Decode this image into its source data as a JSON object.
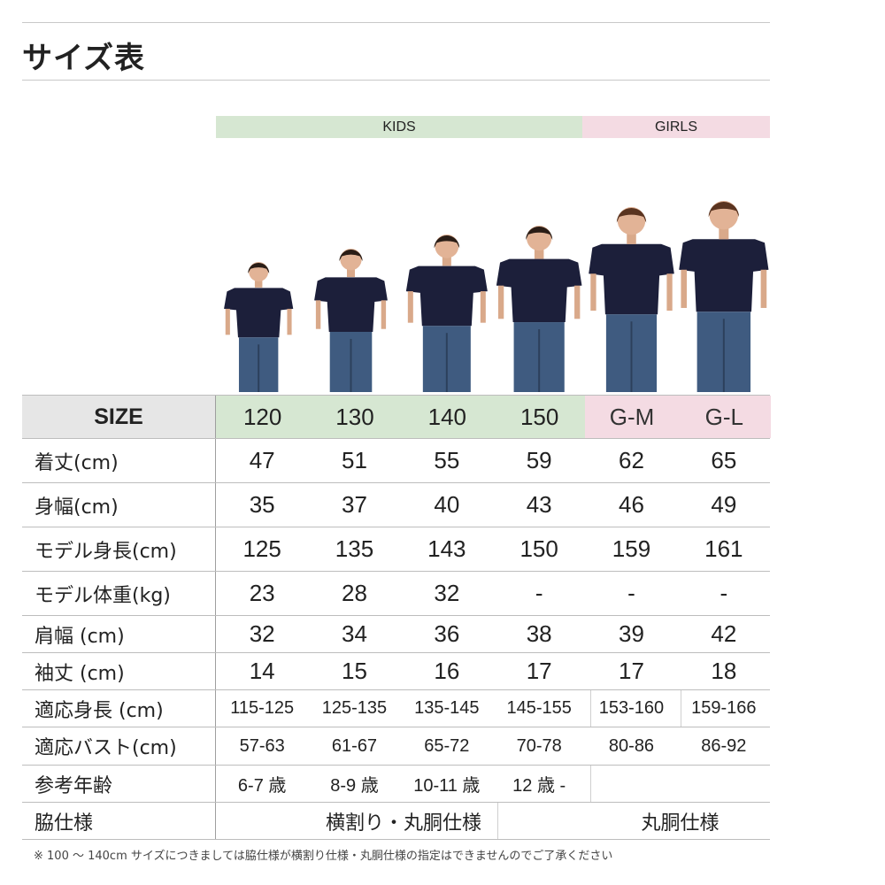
{
  "title": "サイズ表",
  "groups": {
    "kids": "KIDS",
    "girls": "GIRLS"
  },
  "colors": {
    "kids": "#d6e7d2",
    "girls": "#f4dbe3",
    "size_label_bg": "#e6e6e6",
    "shirt": "#1c1f3a",
    "jeans": "#3f5b80"
  },
  "header": {
    "label": "SIZE",
    "sizes": [
      "120",
      "130",
      "140",
      "150",
      "G-M",
      "G-L"
    ]
  },
  "rows": [
    {
      "label": "着丈(cm)",
      "values": [
        "47",
        "51",
        "55",
        "59",
        "62",
        "65"
      ]
    },
    {
      "label": "身幅(cm)",
      "values": [
        "35",
        "37",
        "40",
        "43",
        "46",
        "49"
      ]
    },
    {
      "label": "モデル身長(cm)",
      "values": [
        "125",
        "135",
        "143",
        "150",
        "159",
        "161"
      ]
    },
    {
      "label": "モデル体重(kg)",
      "values": [
        "23",
        "28",
        "32",
        "-",
        "-",
        "-"
      ]
    },
    {
      "label": "肩幅 (cm)",
      "values": [
        "32",
        "34",
        "36",
        "38",
        "39",
        "42"
      ]
    },
    {
      "label": "袖丈 (cm)",
      "values": [
        "14",
        "15",
        "16",
        "17",
        "17",
        "18"
      ]
    },
    {
      "label": "適応身長 (cm)",
      "values": [
        "115-125",
        "125-135",
        "135-145",
        "145-155",
        "153-160",
        "159-166"
      ]
    },
    {
      "label": "適応バスト(cm)",
      "values": [
        "57-63",
        "61-67",
        "65-72",
        "70-78",
        "80-86",
        "86-92"
      ]
    },
    {
      "label": "参考年齢",
      "values": [
        "6-7 歳",
        "8-9 歳",
        "10-11 歳",
        "12 歳 -",
        ""
      ]
    },
    {
      "label": "脇仕様",
      "values": [
        "横割り・丸胴仕様",
        "丸胴仕様"
      ]
    }
  ],
  "note": "※ 100 〜 140cm サイズにつきましては脇仕様が横割り仕様・丸胴仕様の指定はできませんのでご了承ください"
}
